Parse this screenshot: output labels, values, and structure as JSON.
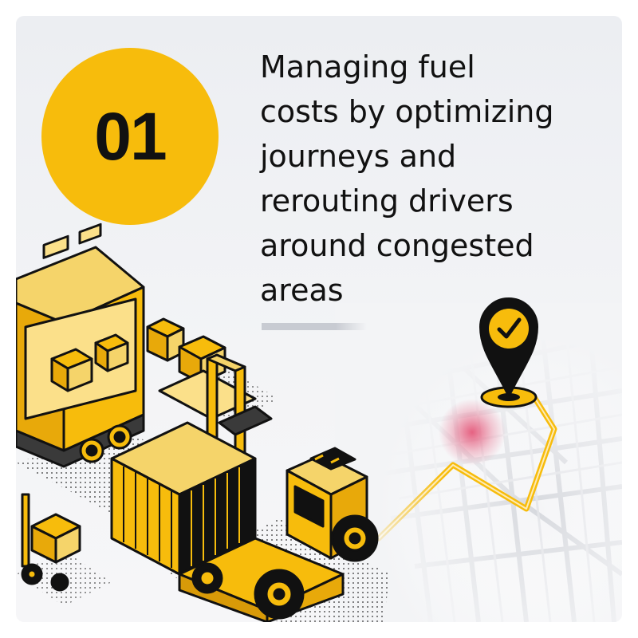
{
  "badge": {
    "number": "01"
  },
  "headline": {
    "lines": [
      "Managing fuel",
      "costs by optimizing",
      "journeys and",
      "rerouting drivers",
      "around congested",
      "areas"
    ]
  },
  "colors": {
    "accent": "#f7bc0c",
    "ink": "#111111",
    "background": "#eceef2",
    "congestion": "#e0305a"
  },
  "icons": [
    "map-pin-checkmark-icon",
    "route-line",
    "city-map"
  ]
}
